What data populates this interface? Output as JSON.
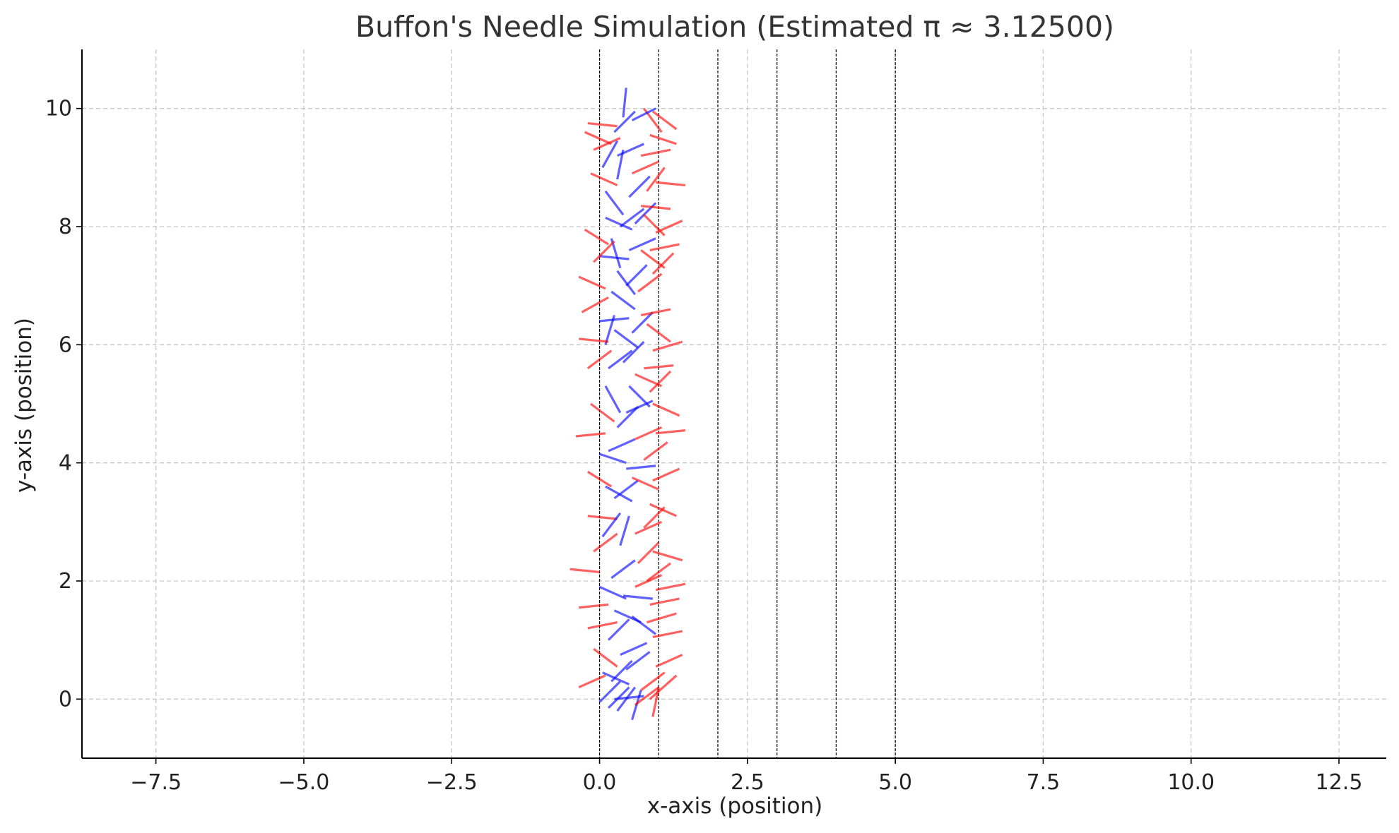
{
  "chart_data": {
    "type": "line",
    "title": "Buffon's Needle Simulation (Estimated π ≈ 3.12500)",
    "xlabel": "x-axis (position)",
    "ylabel": "y-axis (position)",
    "xlim": [
      -8.75,
      13.3
    ],
    "ylim": [
      -1.0,
      11.0
    ],
    "x_ticks": [
      -7.5,
      -5.0,
      -2.5,
      0.0,
      2.5,
      5.0,
      7.5,
      10.0,
      12.5
    ],
    "x_tick_labels": [
      "−7.5",
      "−5.0",
      "−2.5",
      "0.0",
      "2.5",
      "5.0",
      "7.5",
      "10.0",
      "12.5"
    ],
    "y_ticks": [
      0,
      2,
      4,
      6,
      8,
      10
    ],
    "y_tick_labels": [
      "0",
      "2",
      "4",
      "6",
      "8",
      "10"
    ],
    "grid": true,
    "vertical_lines_x": [
      0,
      1,
      2,
      3,
      4,
      5
    ],
    "needle_length": 0.5,
    "colors": {
      "crossing": "#ff0000",
      "not_crossing": "#0000ff",
      "axis": "#000000",
      "grid": "#c8c8c8",
      "title": "#333333"
    },
    "needles": [
      {
        "x1": -0.2,
        "y1": 9.75,
        "x2": 0.3,
        "y2": 9.7
      },
      {
        "x1": 0.05,
        "y1": 9.0,
        "x2": 0.3,
        "y2": 9.45
      },
      {
        "x1": 0.25,
        "y1": 9.6,
        "x2": 0.6,
        "y2": 9.95
      },
      {
        "x1": 0.3,
        "y1": 8.8,
        "x2": 0.4,
        "y2": 9.3
      },
      {
        "x1": -0.1,
        "y1": 9.3,
        "x2": 0.35,
        "y2": 9.5
      },
      {
        "x1": 0.5,
        "y1": 8.5,
        "x2": 0.85,
        "y2": 8.85
      },
      {
        "x1": 0.4,
        "y1": 9.85,
        "x2": 0.45,
        "y2": 10.35
      },
      {
        "x1": 0.7,
        "y1": 9.2,
        "x2": 1.2,
        "y2": 9.3
      },
      {
        "x1": 0.8,
        "y1": 8.6,
        "x2": 1.1,
        "y2": 9.0
      },
      {
        "x1": 0.75,
        "y1": 10.0,
        "x2": 1.05,
        "y2": 9.6
      },
      {
        "x1": 0.95,
        "y1": 8.75,
        "x2": 1.45,
        "y2": 8.7
      },
      {
        "x1": 0.85,
        "y1": 9.55,
        "x2": 1.3,
        "y2": 9.4
      },
      {
        "x1": 0.55,
        "y1": 9.8,
        "x2": 0.95,
        "y2": 10.0
      },
      {
        "x1": 0.1,
        "y1": 8.6,
        "x2": 0.4,
        "y2": 8.2
      },
      {
        "x1": -0.15,
        "y1": 8.9,
        "x2": 0.3,
        "y2": 8.7
      },
      {
        "x1": 0.6,
        "y1": 8.05,
        "x2": 0.95,
        "y2": 8.4
      },
      {
        "x1": 0.85,
        "y1": 7.6,
        "x2": 1.35,
        "y2": 7.7
      },
      {
        "x1": 0.75,
        "y1": 8.2,
        "x2": 1.1,
        "y2": 7.85
      },
      {
        "x1": 0.35,
        "y1": 8.0,
        "x2": 0.75,
        "y2": 8.3
      },
      {
        "x1": -0.25,
        "y1": 7.95,
        "x2": 0.15,
        "y2": 7.7
      },
      {
        "x1": 0.0,
        "y1": 7.5,
        "x2": 0.5,
        "y2": 7.45
      },
      {
        "x1": -0.35,
        "y1": 7.15,
        "x2": 0.1,
        "y2": 6.95
      },
      {
        "x1": 0.2,
        "y1": 7.8,
        "x2": 0.35,
        "y2": 7.3
      },
      {
        "x1": 0.45,
        "y1": 7.0,
        "x2": 0.8,
        "y2": 7.35
      },
      {
        "x1": 0.9,
        "y1": 7.2,
        "x2": 1.25,
        "y2": 7.55
      },
      {
        "x1": 0.7,
        "y1": 7.6,
        "x2": 1.1,
        "y2": 7.3
      },
      {
        "x1": 0.95,
        "y1": 7.9,
        "x2": 1.4,
        "y2": 8.1
      },
      {
        "x1": 0.3,
        "y1": 7.25,
        "x2": 0.6,
        "y2": 6.85
      },
      {
        "x1": -0.3,
        "y1": 6.55,
        "x2": 0.15,
        "y2": 6.8
      },
      {
        "x1": 0.0,
        "y1": 6.4,
        "x2": 0.5,
        "y2": 6.45
      },
      {
        "x1": 0.1,
        "y1": 6.0,
        "x2": 0.25,
        "y2": 6.5
      },
      {
        "x1": 0.55,
        "y1": 6.2,
        "x2": 0.9,
        "y2": 6.55
      },
      {
        "x1": 0.7,
        "y1": 6.5,
        "x2": 1.2,
        "y2": 6.6
      },
      {
        "x1": 0.9,
        "y1": 5.9,
        "x2": 1.4,
        "y2": 6.05
      },
      {
        "x1": 0.8,
        "y1": 6.35,
        "x2": 1.2,
        "y2": 6.05
      },
      {
        "x1": -0.35,
        "y1": 6.1,
        "x2": 0.15,
        "y2": 6.05
      },
      {
        "x1": -0.2,
        "y1": 5.6,
        "x2": 0.2,
        "y2": 5.9
      },
      {
        "x1": 0.2,
        "y1": 6.9,
        "x2": 0.6,
        "y2": 6.6
      },
      {
        "x1": 0.4,
        "y1": 5.7,
        "x2": 0.75,
        "y2": 6.05
      },
      {
        "x1": 0.85,
        "y1": 5.2,
        "x2": 1.2,
        "y2": 5.55
      },
      {
        "x1": 0.75,
        "y1": 5.6,
        "x2": 1.25,
        "y2": 5.65
      },
      {
        "x1": 0.9,
        "y1": 5.0,
        "x2": 1.35,
        "y2": 4.8
      },
      {
        "x1": 0.5,
        "y1": 5.3,
        "x2": 0.85,
        "y2": 4.95
      },
      {
        "x1": -0.4,
        "y1": 4.45,
        "x2": 0.1,
        "y2": 4.5
      },
      {
        "x1": -0.15,
        "y1": 5.0,
        "x2": 0.25,
        "y2": 4.7
      },
      {
        "x1": 0.1,
        "y1": 5.3,
        "x2": 0.35,
        "y2": 4.85
      },
      {
        "x1": 0.3,
        "y1": 4.6,
        "x2": 0.65,
        "y2": 4.95
      },
      {
        "x1": 0.6,
        "y1": 4.4,
        "x2": 1.05,
        "y2": 4.6
      },
      {
        "x1": 0.95,
        "y1": 4.5,
        "x2": 1.45,
        "y2": 4.55
      },
      {
        "x1": 0.75,
        "y1": 4.05,
        "x2": 1.15,
        "y2": 4.35
      },
      {
        "x1": 0.0,
        "y1": 4.15,
        "x2": 0.45,
        "y2": 4.0
      },
      {
        "x1": -0.2,
        "y1": 3.85,
        "x2": 0.2,
        "y2": 3.6
      },
      {
        "x1": 0.25,
        "y1": 3.4,
        "x2": 0.65,
        "y2": 3.7
      },
      {
        "x1": 0.55,
        "y1": 3.75,
        "x2": 1.0,
        "y2": 3.55
      },
      {
        "x1": 0.85,
        "y1": 3.3,
        "x2": 1.3,
        "y2": 3.1
      },
      {
        "x1": 0.9,
        "y1": 3.7,
        "x2": 1.35,
        "y2": 3.9
      },
      {
        "x1": 0.75,
        "y1": 2.9,
        "x2": 1.1,
        "y2": 3.25
      },
      {
        "x1": -0.2,
        "y1": 3.1,
        "x2": 0.3,
        "y2": 3.05
      },
      {
        "x1": 0.05,
        "y1": 2.75,
        "x2": 0.35,
        "y2": 3.15
      },
      {
        "x1": 0.35,
        "y1": 2.6,
        "x2": 0.5,
        "y2": 3.1
      },
      {
        "x1": 0.65,
        "y1": 2.3,
        "x2": 1.0,
        "y2": 2.65
      },
      {
        "x1": 0.9,
        "y1": 2.5,
        "x2": 1.4,
        "y2": 2.35
      },
      {
        "x1": 0.8,
        "y1": 2.0,
        "x2": 1.2,
        "y2": 2.3
      },
      {
        "x1": -0.5,
        "y1": 2.2,
        "x2": 0.0,
        "y2": 2.15
      },
      {
        "x1": -0.1,
        "y1": 2.5,
        "x2": 0.3,
        "y2": 2.8
      },
      {
        "x1": 0.2,
        "y1": 2.05,
        "x2": 0.6,
        "y2": 2.35
      },
      {
        "x1": 0.4,
        "y1": 1.75,
        "x2": 0.9,
        "y2": 1.7
      },
      {
        "x1": 0.6,
        "y1": 1.9,
        "x2": 1.05,
        "y2": 2.1
      },
      {
        "x1": 0.85,
        "y1": 1.6,
        "x2": 1.35,
        "y2": 1.7
      },
      {
        "x1": 0.95,
        "y1": 1.85,
        "x2": 1.45,
        "y2": 1.95
      },
      {
        "x1": -0.35,
        "y1": 1.55,
        "x2": 0.15,
        "y2": 1.6
      },
      {
        "x1": -0.2,
        "y1": 1.2,
        "x2": 0.3,
        "y2": 1.3
      },
      {
        "x1": 0.15,
        "y1": 1.0,
        "x2": 0.5,
        "y2": 1.35
      },
      {
        "x1": 0.55,
        "y1": 1.4,
        "x2": 0.95,
        "y2": 1.1
      },
      {
        "x1": 0.9,
        "y1": 1.05,
        "x2": 1.4,
        "y2": 1.15
      },
      {
        "x1": 0.8,
        "y1": 1.3,
        "x2": 1.3,
        "y2": 1.45
      },
      {
        "x1": 0.95,
        "y1": 0.55,
        "x2": 1.4,
        "y2": 0.75
      },
      {
        "x1": -0.1,
        "y1": 0.85,
        "x2": 0.3,
        "y2": 0.55
      },
      {
        "x1": 0.2,
        "y1": 0.3,
        "x2": 0.55,
        "y2": 0.65
      },
      {
        "x1": 0.45,
        "y1": 0.5,
        "x2": 0.85,
        "y2": 0.8
      },
      {
        "x1": 0.7,
        "y1": 0.15,
        "x2": 1.1,
        "y2": 0.45
      },
      {
        "x1": 0.85,
        "y1": 0.0,
        "x2": 1.3,
        "y2": 0.4
      },
      {
        "x1": -0.35,
        "y1": 0.2,
        "x2": 0.1,
        "y2": 0.4
      },
      {
        "x1": 0.0,
        "y1": -0.05,
        "x2": 0.35,
        "y2": 0.3
      },
      {
        "x1": 0.3,
        "y1": -0.2,
        "x2": 0.6,
        "y2": 0.2
      },
      {
        "x1": 0.55,
        "y1": -0.35,
        "x2": 0.7,
        "y2": 0.15
      },
      {
        "x1": 0.9,
        "y1": -0.3,
        "x2": 1.0,
        "y2": 0.2
      },
      {
        "x1": 0.25,
        "y1": 0.0,
        "x2": 0.75,
        "y2": 0.05
      },
      {
        "x1": 0.6,
        "y1": -0.1,
        "x2": 1.0,
        "y2": 0.2
      },
      {
        "x1": 0.15,
        "y1": -0.15,
        "x2": 0.5,
        "y2": 0.2
      },
      {
        "x1": -0.25,
        "y1": 9.6,
        "x2": 0.2,
        "y2": 9.4
      },
      {
        "x1": 0.3,
        "y1": 9.2,
        "x2": 0.75,
        "y2": 9.4
      },
      {
        "x1": 0.55,
        "y1": 8.9,
        "x2": 1.0,
        "y2": 9.1
      },
      {
        "x1": 0.9,
        "y1": 9.95,
        "x2": 1.3,
        "y2": 9.65
      },
      {
        "x1": 0.7,
        "y1": 8.35,
        "x2": 1.2,
        "y2": 8.3
      },
      {
        "x1": 0.1,
        "y1": 8.15,
        "x2": 0.55,
        "y2": 7.95
      },
      {
        "x1": 0.5,
        "y1": 7.6,
        "x2": 0.95,
        "y2": 7.8
      },
      {
        "x1": -0.1,
        "y1": 7.4,
        "x2": 0.25,
        "y2": 7.75
      },
      {
        "x1": 0.65,
        "y1": 6.9,
        "x2": 1.05,
        "y2": 7.2
      },
      {
        "x1": 0.25,
        "y1": 6.25,
        "x2": 0.65,
        "y2": 5.95
      },
      {
        "x1": 0.6,
        "y1": 5.5,
        "x2": 1.05,
        "y2": 5.3
      },
      {
        "x1": 0.15,
        "y1": 5.6,
        "x2": 0.55,
        "y2": 5.9
      },
      {
        "x1": 0.45,
        "y1": 4.85,
        "x2": 0.9,
        "y2": 5.05
      },
      {
        "x1": 0.15,
        "y1": 4.2,
        "x2": 0.6,
        "y2": 4.4
      },
      {
        "x1": 0.45,
        "y1": 3.9,
        "x2": 0.95,
        "y2": 3.95
      },
      {
        "x1": 0.1,
        "y1": 3.6,
        "x2": 0.55,
        "y2": 3.35
      },
      {
        "x1": 0.6,
        "y1": 2.8,
        "x2": 1.05,
        "y2": 3.0
      },
      {
        "x1": 0.25,
        "y1": 1.5,
        "x2": 0.7,
        "y2": 1.3
      },
      {
        "x1": 0.0,
        "y1": 1.9,
        "x2": 0.45,
        "y2": 1.7
      },
      {
        "x1": 0.35,
        "y1": 0.75,
        "x2": 0.8,
        "y2": 0.95
      },
      {
        "x1": 0.05,
        "y1": 0.45,
        "x2": 0.5,
        "y2": 0.25
      }
    ]
  }
}
